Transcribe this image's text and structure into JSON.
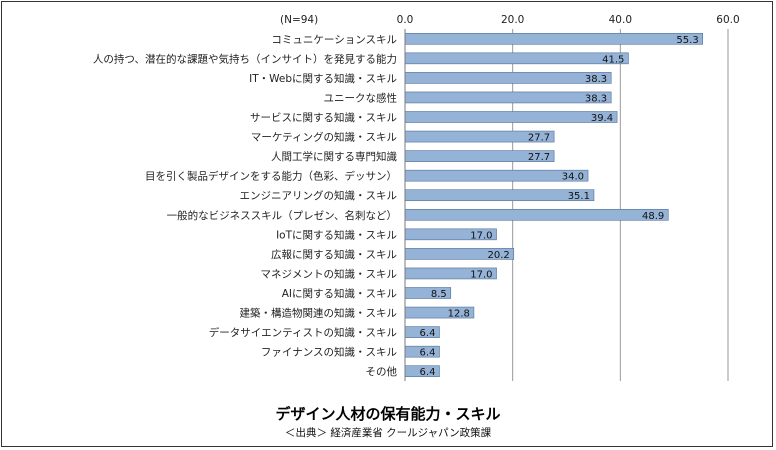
{
  "chart_data": {
    "type": "bar",
    "orientation": "horizontal",
    "sample_note": "(N=94)",
    "categories": [
      "コミュニケーションスキル",
      "人の持つ、潜在的な課題や気持ち（インサイト）を発見する能力",
      "IT・Webに関する知識・スキル",
      "ユニークな感性",
      "サービスに関する知識・スキル",
      "マーケティングの知識・スキル",
      "人間工学に関する専門知識",
      "目を引く製品デザインをする能力（色彩、デッサン）",
      "エンジニアリングの知識・スキル",
      "一般的なビジネススキル（プレゼン、名刺など）",
      "IoTに関する知識・スキル",
      "広報に関する知識・スキル",
      "マネジメントの知識・スキル",
      "AIに関する知識・スキル",
      "建築・構造物関連の知識・スキル",
      "データサイエンティストの知識・スキル",
      "ファイナンスの知識・スキル",
      "その他"
    ],
    "values": [
      55.3,
      41.5,
      38.3,
      38.3,
      39.4,
      27.7,
      27.7,
      34.0,
      35.1,
      48.9,
      17.0,
      20.2,
      17.0,
      8.5,
      12.8,
      6.4,
      6.4,
      6.4
    ],
    "value_labels": [
      "55.3",
      "41.5",
      "38.3",
      "38.3",
      "39.4",
      "27.7",
      "27.7",
      "34.0",
      "35.1",
      "48.9",
      "17.0",
      "20.2",
      "17.0",
      "8.5",
      "12.8",
      "6.4",
      "6.4",
      "6.4"
    ],
    "xlim": [
      0,
      60
    ],
    "xticks": [
      0,
      20,
      40,
      60
    ],
    "xtick_labels": [
      "0.0",
      "20.0",
      "40.0",
      "60.0"
    ],
    "x_axis_position": "top",
    "gridlines": true,
    "bar_color": "#95b3d7",
    "bar_edge_color": "#4f6f96",
    "grid_color": "#9a9a9a",
    "title": "デザイン人材の保有能力・スキル",
    "source": "＜出典＞ 経済産業省 クールジャパン政策課"
  }
}
